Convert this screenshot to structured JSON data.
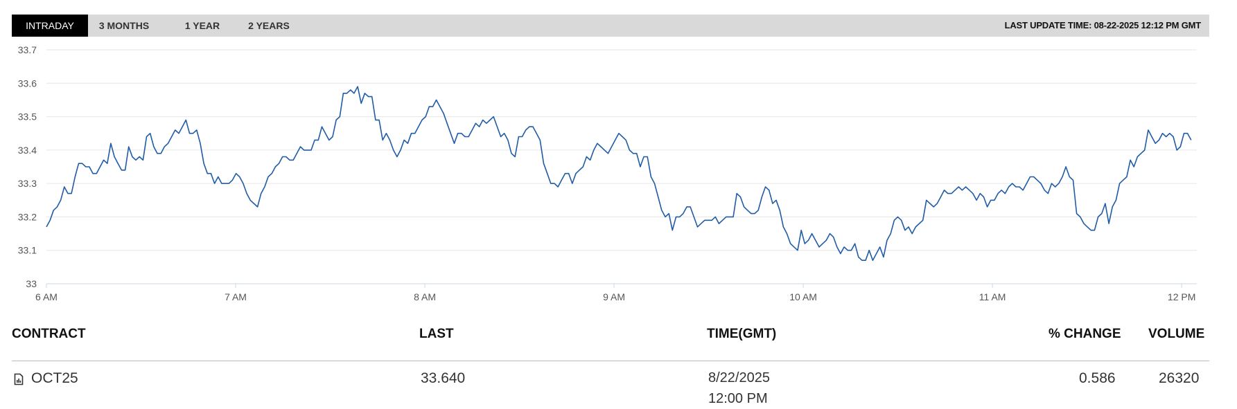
{
  "tabs": [
    {
      "label": "INTRADAY",
      "active": true
    },
    {
      "label": "3 MONTHS",
      "active": false
    },
    {
      "label": "1 YEAR",
      "active": false
    },
    {
      "label": "2 YEARS",
      "active": false
    }
  ],
  "last_update": "LAST UPDATE TIME: 08-22-2025 12:12 PM GMT",
  "colors": {
    "line": "#1f5ba6",
    "grid": "#e6e6e6"
  },
  "chart_data": {
    "type": "line",
    "x_ticks": [
      "6 AM",
      "7 AM",
      "8 AM",
      "9 AM",
      "10 AM",
      "11 AM",
      "12 PM"
    ],
    "y_ticks": [
      "33",
      "33.1",
      "33.2",
      "33.3",
      "33.4",
      "33.5",
      "33.6",
      "33.7"
    ],
    "ylim": [
      33.0,
      33.7
    ],
    "xlim": [
      6.0,
      12.08
    ],
    "grid": true,
    "series": [
      {
        "x_start": 6.0,
        "x_end": 12.05,
        "values": [
          33.17,
          33.19,
          33.22,
          33.23,
          33.25,
          33.29,
          33.27,
          33.27,
          33.32,
          33.36,
          33.36,
          33.35,
          33.35,
          33.33,
          33.33,
          33.35,
          33.37,
          33.36,
          33.42,
          33.38,
          33.36,
          33.34,
          33.34,
          33.41,
          33.38,
          33.37,
          33.38,
          33.37,
          33.44,
          33.45,
          33.41,
          33.39,
          33.39,
          33.41,
          33.42,
          33.44,
          33.46,
          33.45,
          33.47,
          33.49,
          33.45,
          33.45,
          33.46,
          33.42,
          33.36,
          33.33,
          33.33,
          33.3,
          33.32,
          33.3,
          33.3,
          33.3,
          33.31,
          33.33,
          33.32,
          33.3,
          33.27,
          33.25,
          33.24,
          33.23,
          33.27,
          33.29,
          33.32,
          33.33,
          33.35,
          33.36,
          33.38,
          33.38,
          33.37,
          33.37,
          33.39,
          33.41,
          33.4,
          33.4,
          33.4,
          33.43,
          33.43,
          33.47,
          33.45,
          33.43,
          33.44,
          33.49,
          33.5,
          33.57,
          33.57,
          33.58,
          33.57,
          33.59,
          33.54,
          33.57,
          33.56,
          33.56,
          33.49,
          33.49,
          33.43,
          33.45,
          33.43,
          33.4,
          33.38,
          33.4,
          33.43,
          33.42,
          33.45,
          33.45,
          33.47,
          33.49,
          33.5,
          33.53,
          33.53,
          33.55,
          33.53,
          33.51,
          33.48,
          33.45,
          33.42,
          33.45,
          33.45,
          33.44,
          33.44,
          33.46,
          33.48,
          33.47,
          33.49,
          33.48,
          33.49,
          33.5,
          33.47,
          33.44,
          33.45,
          33.43,
          33.39,
          33.38,
          33.44,
          33.44,
          33.46,
          33.47,
          33.47,
          33.45,
          33.43,
          33.36,
          33.33,
          33.3,
          33.3,
          33.29,
          33.31,
          33.33,
          33.33,
          33.3,
          33.33,
          33.34,
          33.35,
          33.38,
          33.37,
          33.4,
          33.42,
          33.41,
          33.4,
          33.39,
          33.41,
          33.43,
          33.45,
          33.44,
          33.43,
          33.4,
          33.39,
          33.39,
          33.35,
          33.38,
          33.38,
          33.32,
          33.3,
          33.26,
          33.22,
          33.2,
          33.21,
          33.16,
          33.2,
          33.2,
          33.21,
          33.23,
          33.23,
          33.2,
          33.17,
          33.18,
          33.19,
          33.19,
          33.19,
          33.2,
          33.18,
          33.19,
          33.2,
          33.2,
          33.2,
          33.27,
          33.26,
          33.23,
          33.22,
          33.21,
          33.21,
          33.22,
          33.26,
          33.29,
          33.28,
          33.24,
          33.25,
          33.22,
          33.17,
          33.15,
          33.12,
          33.11,
          33.1,
          33.16,
          33.12,
          33.13,
          33.15,
          33.13,
          33.11,
          33.12,
          33.13,
          33.15,
          33.14,
          33.11,
          33.09,
          33.11,
          33.1,
          33.1,
          33.12,
          33.08,
          33.07,
          33.07,
          33.1,
          33.07,
          33.09,
          33.11,
          33.08,
          33.13,
          33.15,
          33.19,
          33.2,
          33.19,
          33.16,
          33.17,
          33.15,
          33.17,
          33.18,
          33.19,
          33.25,
          33.24,
          33.23,
          33.24,
          33.26,
          33.28,
          33.27,
          33.27,
          33.28,
          33.29,
          33.28,
          33.29,
          33.28,
          33.27,
          33.25,
          33.27,
          33.26,
          33.23,
          33.25,
          33.25,
          33.27,
          33.28,
          33.27,
          33.29,
          33.3,
          33.29,
          33.29,
          33.28,
          33.3,
          33.32,
          33.32,
          33.31,
          33.3,
          33.28,
          33.27,
          33.3,
          33.29,
          33.3,
          33.32,
          33.35,
          33.32,
          33.31,
          33.21,
          33.2,
          33.18,
          33.17,
          33.16,
          33.16,
          33.2,
          33.21,
          33.24,
          33.18,
          33.23,
          33.25,
          33.3,
          33.31,
          33.32,
          33.37,
          33.35,
          33.38,
          33.39,
          33.4,
          33.46,
          33.44,
          33.42,
          33.43,
          33.45,
          33.44,
          33.45,
          33.44,
          33.4,
          33.41,
          33.45,
          33.45,
          33.43
        ]
      }
    ]
  },
  "table": {
    "headers": {
      "contract": "CONTRACT",
      "last": "LAST",
      "time": "TIME(GMT)",
      "change": "% CHANGE",
      "volume": "VOLUME"
    },
    "row": {
      "icon": "document-chart-icon",
      "contract": "OCT25",
      "last": "33.640",
      "date": "8/22/2025",
      "time": "12:00 PM",
      "change": "0.586",
      "volume": "26320"
    }
  }
}
